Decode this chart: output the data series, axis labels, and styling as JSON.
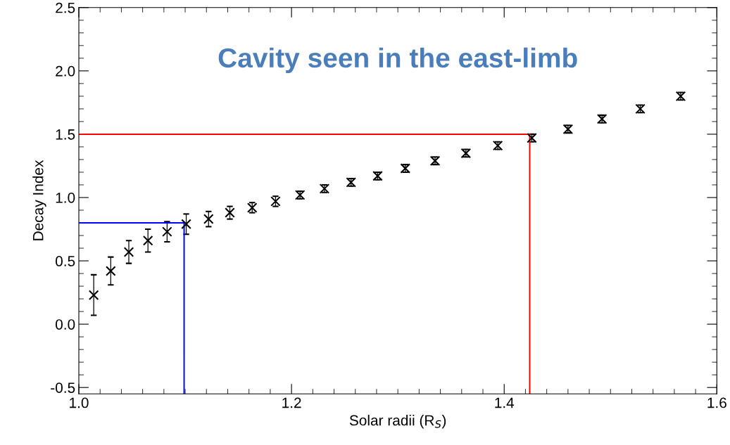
{
  "chart_data": {
    "type": "scatter",
    "title": "Cavity seen in the east-limb",
    "xlabel": "Solar radii (R$_{S}$)",
    "ylabel": "Decay Index",
    "xlim": [
      1.0,
      1.6
    ],
    "xticks": [
      {
        "value": 1,
        "label": "1.0"
      },
      1.2,
      1.4,
      1.6
    ],
    "ylim": [
      -0.55,
      2.5
    ],
    "yticks": [
      -0.5,
      {
        "value": 0,
        "label": "0.0"
      },
      0.5,
      {
        "value": 1,
        "label": "1.0"
      },
      1.5,
      {
        "value": 2,
        "label": "2.0"
      },
      2.5
    ],
    "grid": false,
    "legend": false,
    "marker": "cross",
    "series": [
      {
        "color": "#000000",
        "x": [
          1.014,
          1.03,
          1.047,
          1.065,
          1.083,
          1.101,
          1.122,
          1.142,
          1.163,
          1.185,
          1.208,
          1.231,
          1.256,
          1.281,
          1.307,
          1.335,
          1.364,
          1.394,
          1.426,
          1.46,
          1.492,
          1.528,
          1.566
        ],
        "values": [
          0.23,
          0.42,
          0.57,
          0.66,
          0.73,
          0.79,
          0.83,
          0.88,
          0.92,
          0.97,
          1.02,
          1.07,
          1.12,
          1.17,
          1.23,
          1.29,
          1.35,
          1.41,
          1.47,
          1.54,
          1.62,
          1.7,
          1.8
        ],
        "errors": [
          0.16,
          0.11,
          0.09,
          0.09,
          0.08,
          0.08,
          0.06,
          0.05,
          0.04,
          0.04,
          0.03,
          0.03,
          0.03,
          0.03,
          0.03,
          0.03,
          0.03,
          0.03,
          0.03,
          0.03,
          0.03,
          0.03,
          0.03
        ]
      },
      {
        "type": "line",
        "color": "#ff0000",
        "marker": "none",
        "x": [
          1.0,
          1.424,
          1.424
        ],
        "values": [
          1.5,
          1.5,
          -0.55
        ]
      },
      {
        "type": "line",
        "color": "#0000ff",
        "marker": "none",
        "x": [
          1.0,
          1.099,
          1.099
        ],
        "values": [
          0.8,
          0.8,
          -0.55
        ]
      }
    ]
  }
}
